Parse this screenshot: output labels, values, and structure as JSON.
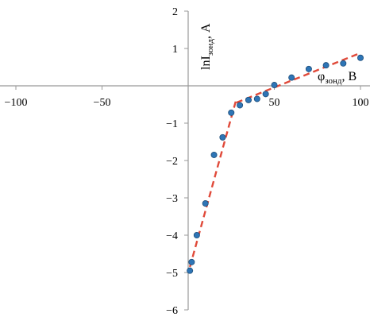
{
  "chart_data": {
    "type": "scatter",
    "xlim": [
      -100,
      100
    ],
    "ylim": [
      -6,
      2
    ],
    "x_ticks": [
      -100,
      -50,
      0,
      50,
      100
    ],
    "y_ticks": [
      -6,
      -5,
      -4,
      -3,
      -2,
      -1,
      1,
      2
    ],
    "x_tick_labels": [
      "−100",
      "−50",
      "",
      "50",
      "100"
    ],
    "y_tick_labels": [
      "−6",
      "−5",
      "−4",
      "−3",
      "−2",
      "−1",
      "1",
      "2"
    ],
    "xlabel": {
      "base": "φ",
      "sub": "зонд",
      "suffix": ", В"
    },
    "ylabel": {
      "base": "lnI",
      "sub": "зонд",
      "suffix": ", А"
    },
    "grid": false,
    "series": [
      {
        "points": [
          [
            1,
            -4.95
          ],
          [
            2,
            -4.72
          ],
          [
            5,
            -4.0
          ],
          [
            10,
            -3.15
          ],
          [
            15,
            -1.85
          ],
          [
            20,
            -1.38
          ],
          [
            25,
            -0.72
          ],
          [
            30,
            -0.52
          ],
          [
            35,
            -0.38
          ],
          [
            40,
            -0.35
          ],
          [
            45,
            -0.22
          ],
          [
            50,
            0.02
          ],
          [
            60,
            0.22
          ],
          [
            70,
            0.45
          ],
          [
            80,
            0.55
          ],
          [
            90,
            0.6
          ],
          [
            100,
            0.75
          ]
        ],
        "color": "#2e75b6"
      }
    ],
    "fit_lines": [
      {
        "from": [
          1,
          -4.85
        ],
        "to": [
          28,
          -0.35
        ],
        "color": "#e04a3a",
        "dash": true
      },
      {
        "from": [
          28,
          -0.45
        ],
        "to": [
          100,
          0.88
        ],
        "color": "#e04a3a",
        "dash": true
      }
    ]
  }
}
